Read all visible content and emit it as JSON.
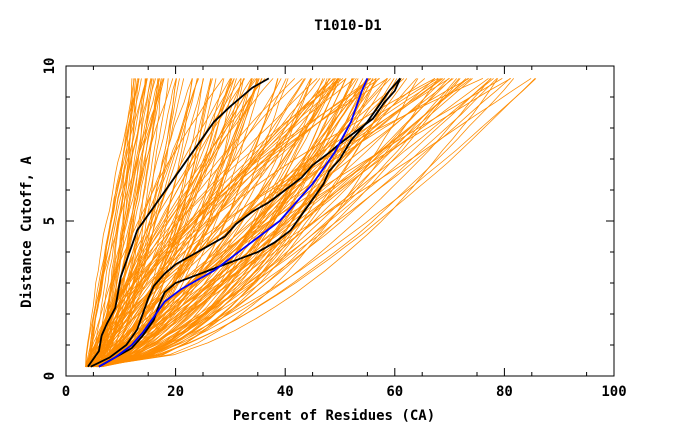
{
  "chart_data": {
    "type": "line",
    "title": "T1010-D1",
    "xlabel": "Percent of Residues (CA)",
    "ylabel": "Distance Cutoff, A",
    "xlim": [
      0,
      100
    ],
    "ylim": [
      0,
      10
    ],
    "xticks": [
      0,
      20,
      40,
      60,
      80,
      100
    ],
    "yticks": [
      0,
      5,
      10
    ],
    "grid": false,
    "colors": {
      "background_models": "#ff8c00",
      "highlight_black": "#000000",
      "highlight_blue": "#0000ff",
      "axes": "#000000"
    },
    "series": [
      {
        "color": "#000000",
        "x": [
          4,
          6,
          6.5,
          7.5,
          9,
          9.5,
          10,
          11,
          12,
          13,
          15,
          17,
          19,
          21,
          23,
          25,
          27,
          30,
          32,
          34,
          37
        ],
        "y": [
          0.3,
          0.8,
          1.3,
          1.7,
          2.2,
          2.7,
          3.2,
          3.7,
          4.2,
          4.7,
          5.2,
          5.7,
          6.2,
          6.7,
          7.2,
          7.7,
          8.2,
          8.7,
          9.0,
          9.3,
          9.6
        ]
      },
      {
        "color": "#000000",
        "x": [
          4.5,
          8,
          11,
          13,
          14,
          15,
          16,
          18,
          20,
          23,
          26,
          29,
          31,
          34,
          37,
          40,
          43,
          45,
          48,
          50,
          53,
          56,
          58,
          60,
          61
        ],
        "y": [
          0.3,
          0.6,
          1.0,
          1.5,
          2.0,
          2.5,
          2.9,
          3.3,
          3.6,
          3.9,
          4.2,
          4.5,
          4.9,
          5.3,
          5.6,
          6.0,
          6.4,
          6.8,
          7.2,
          7.5,
          7.9,
          8.3,
          8.8,
          9.2,
          9.6
        ]
      },
      {
        "color": "#000000",
        "x": [
          6,
          9,
          12,
          14,
          16,
          17,
          18,
          20,
          23,
          26,
          29,
          32,
          35,
          38,
          41,
          43,
          45,
          47,
          48,
          50,
          52,
          55,
          57,
          59,
          61
        ],
        "y": [
          0.3,
          0.6,
          0.9,
          1.3,
          1.8,
          2.3,
          2.7,
          3.0,
          3.2,
          3.4,
          3.6,
          3.8,
          4.0,
          4.3,
          4.7,
          5.2,
          5.7,
          6.2,
          6.6,
          7.0,
          7.6,
          8.2,
          8.7,
          9.2,
          9.6
        ]
      },
      {
        "color": "#0000ff",
        "x": [
          6,
          9,
          12,
          14,
          16,
          18,
          21,
          24,
          27,
          30,
          33,
          36,
          39,
          41,
          43,
          45,
          47,
          49,
          50.5,
          52,
          53,
          54,
          55
        ],
        "y": [
          0.3,
          0.6,
          1.0,
          1.4,
          1.9,
          2.4,
          2.8,
          3.1,
          3.4,
          3.8,
          4.2,
          4.6,
          5.0,
          5.4,
          5.8,
          6.2,
          6.7,
          7.2,
          7.7,
          8.2,
          8.7,
          9.2,
          9.6
        ]
      }
    ]
  }
}
